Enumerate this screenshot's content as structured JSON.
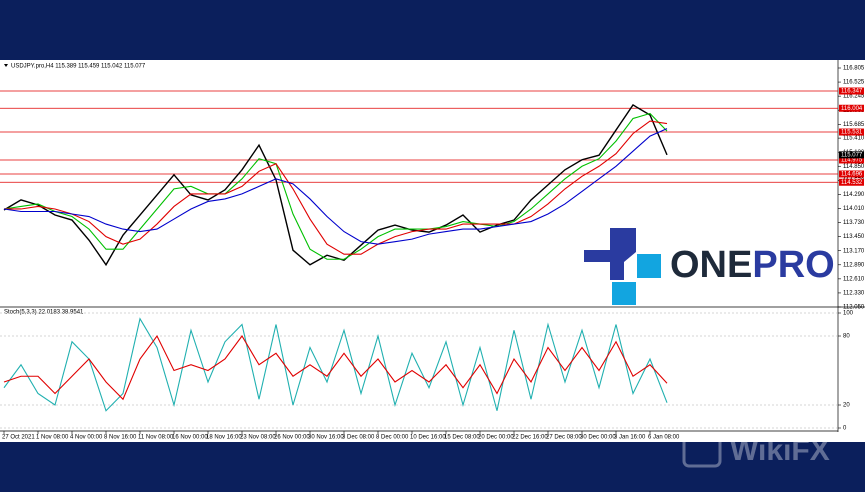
{
  "chart_data": [
    {
      "type": "line",
      "title": "USDJPY.pro,H4 115.389 115.459 115.042 115.077",
      "categories": [
        "27 Oct 2021",
        null,
        "1 Nov 08:00",
        null,
        "4 Nov 00:00",
        null,
        "8 Nov 16:00",
        null,
        "11 Nov 08:00",
        null,
        "16 Nov 00:00",
        null,
        "18 Nov 16:00",
        null,
        "23 Nov 08:00",
        null,
        "26 Nov 00:00",
        null,
        "30 Nov 16:00",
        null,
        "3 Dec 08:00",
        null,
        "8 Dec 00:00",
        null,
        "10 Dec 16:00",
        null,
        "15 Dec 08:00",
        null,
        "20 Dec 00:00",
        null,
        "22 Dec 16:00",
        null,
        "27 Dec 08:00",
        null,
        "30 Dec 00:00",
        null,
        "3 Jan 16:00",
        null,
        "6 Jan 08:00",
        null
      ],
      "series": [
        {
          "color": "#000000",
          "values": [
            113.98,
            114.18,
            114.08,
            113.88,
            113.78,
            113.38,
            112.89,
            113.48,
            113.88,
            114.28,
            114.68,
            114.28,
            114.18,
            114.38,
            114.78,
            115.27,
            114.58,
            113.18,
            112.89,
            113.08,
            112.98,
            113.28,
            113.58,
            113.68,
            113.58,
            113.54,
            113.68,
            113.88,
            113.54,
            113.68,
            113.78,
            114.18,
            114.48,
            114.78,
            114.98,
            115.07,
            115.57,
            116.07,
            115.87,
            115.077
          ]
        },
        {
          "color": "#00c000",
          "values": [
            114.0,
            114.05,
            114.1,
            113.95,
            113.85,
            113.6,
            113.2,
            113.2,
            113.6,
            114.0,
            114.4,
            114.45,
            114.3,
            114.3,
            114.6,
            115.0,
            114.9,
            113.9,
            113.2,
            113.0,
            113.0,
            113.2,
            113.45,
            113.6,
            113.6,
            113.6,
            113.65,
            113.75,
            113.7,
            113.65,
            113.75,
            114.0,
            114.3,
            114.6,
            114.85,
            115.0,
            115.35,
            115.8,
            115.9,
            115.55
          ]
        },
        {
          "color": "#e00000",
          "values": [
            114.0,
            114.0,
            114.05,
            114.0,
            113.9,
            113.75,
            113.45,
            113.3,
            113.4,
            113.7,
            114.05,
            114.3,
            114.3,
            114.3,
            114.45,
            114.75,
            114.9,
            114.4,
            113.8,
            113.3,
            113.1,
            113.1,
            113.3,
            113.45,
            113.55,
            113.6,
            113.6,
            113.7,
            113.7,
            113.7,
            113.7,
            113.85,
            114.1,
            114.4,
            114.65,
            114.85,
            115.1,
            115.5,
            115.75,
            115.7
          ]
        },
        {
          "color": "#0000cc",
          "values": [
            114.0,
            113.95,
            113.95,
            113.95,
            113.9,
            113.85,
            113.7,
            113.6,
            113.55,
            113.6,
            113.8,
            114.0,
            114.15,
            114.2,
            114.3,
            114.45,
            114.6,
            114.5,
            114.2,
            113.85,
            113.55,
            113.35,
            113.3,
            113.35,
            113.4,
            113.5,
            113.55,
            113.6,
            113.6,
            113.65,
            113.7,
            113.75,
            113.9,
            114.1,
            114.35,
            114.6,
            114.85,
            115.15,
            115.45,
            115.6
          ]
        }
      ],
      "levels": [
        116.347,
        116.004,
        115.531,
        114.975,
        114.696,
        114.532
      ],
      "level_color": "#e00000",
      "price_marker": 115.077,
      "ylim": [
        112.05,
        116.805
      ],
      "yticks": [
        116.805,
        116.525,
        116.245,
        115.965,
        115.685,
        {
          "value": 115.41,
          "label": "115.410"
        },
        {
          "value": 115.13,
          "label": "115.130"
        },
        {
          "value": 114.85,
          "label": "114.850"
        },
        {
          "value": 114.57,
          "label": "114.570"
        },
        {
          "value": 114.29,
          "label": "114.290"
        },
        {
          "value": 114.01,
          "label": "114.010"
        },
        {
          "value": 113.73,
          "label": "113.730"
        },
        {
          "value": 113.45,
          "label": "113.450"
        },
        {
          "value": 113.17,
          "label": "113.170"
        },
        {
          "value": 112.89,
          "label": "112.890"
        },
        {
          "value": 112.61,
          "label": "112.610"
        },
        {
          "value": 112.33,
          "label": "112.330"
        },
        {
          "value": 112.05,
          "label": "112.050"
        }
      ]
    },
    {
      "type": "line",
      "title": "Stoch(5,3,3) 22.0183 38.9541",
      "series": [
        {
          "color": "#20b0b0",
          "values": [
            35,
            55,
            30,
            20,
            75,
            60,
            15,
            30,
            95,
            70,
            20,
            85,
            40,
            75,
            90,
            25,
            90,
            20,
            70,
            40,
            85,
            30,
            80,
            20,
            65,
            35,
            75,
            20,
            70,
            15,
            85,
            25,
            90,
            40,
            85,
            35,
            90,
            30,
            60,
            22.0183
          ]
        },
        {
          "color": "#e00000",
          "values": [
            40,
            45,
            45,
            30,
            45,
            60,
            40,
            25,
            60,
            80,
            50,
            55,
            50,
            60,
            80,
            55,
            65,
            45,
            55,
            45,
            65,
            45,
            60,
            40,
            50,
            40,
            55,
            35,
            55,
            30,
            60,
            40,
            70,
            50,
            70,
            50,
            75,
            45,
            55,
            38.9541
          ]
        }
      ],
      "ylim": [
        0,
        100
      ],
      "yticks": [
        0,
        20,
        80,
        100
      ]
    }
  ],
  "logo": {
    "part1": "ONE",
    "part2": "PRO"
  },
  "watermark": "WikiFX"
}
